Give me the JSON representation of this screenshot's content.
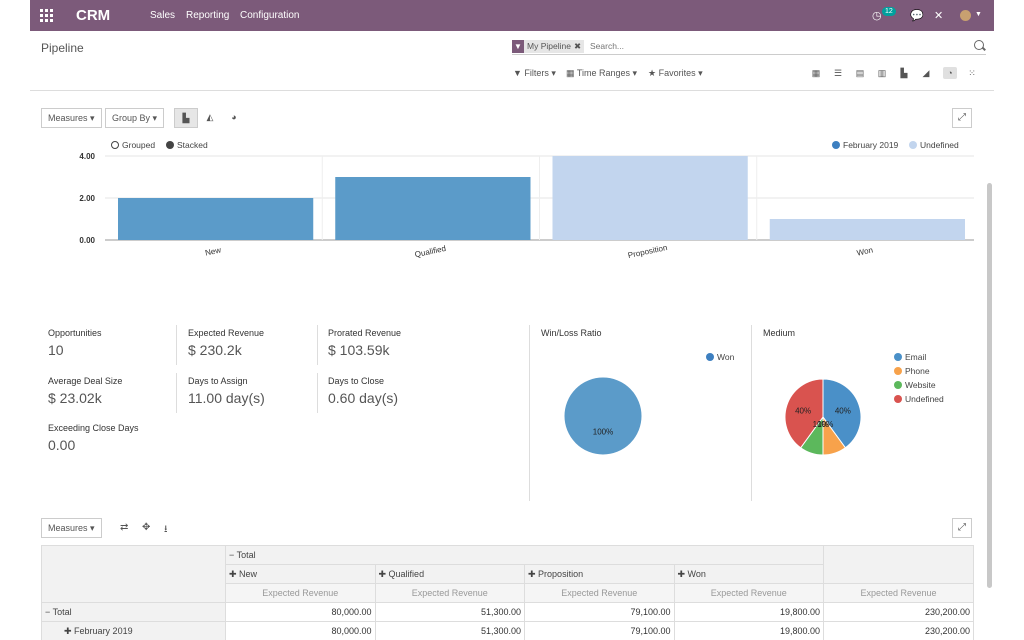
{
  "nav": {
    "brand": "CRM",
    "menus": [
      "Sales",
      "Reporting",
      "Configuration"
    ],
    "activity_count": "12"
  },
  "control_panel": {
    "breadcrumb": "Pipeline",
    "facet_value": "My Pipeline",
    "search_placeholder": "Search...",
    "filters_label": "Filters",
    "time_ranges_label": "Time Ranges",
    "favorites_label": "Favorites"
  },
  "graph": {
    "measures_label": "Measures",
    "groupby_label": "Group By",
    "grouped_label": "Grouped",
    "stacked_label": "Stacked"
  },
  "chart_data": [
    {
      "type": "bar",
      "categories": [
        "New",
        "Qualified",
        "Proposition",
        "Won"
      ],
      "series": [
        {
          "name": "February 2019",
          "values": [
            2,
            3,
            null,
            null
          ],
          "color": "#5b9bc9"
        },
        {
          "name": "Undefined",
          "values": [
            null,
            null,
            4,
            1
          ],
          "color": "#c2d5ee"
        }
      ],
      "ylim": [
        0,
        4
      ],
      "yticks": [
        "4.00",
        "2.00",
        "0.00"
      ],
      "legend": "top-right",
      "grid": true
    },
    {
      "type": "pie",
      "title": "Win/Loss Ratio",
      "labels": [
        "Won"
      ],
      "values": [
        100
      ],
      "data_labels": [
        "100%"
      ],
      "colors": [
        "#5b9bc9"
      ]
    },
    {
      "type": "pie",
      "title": "Medium",
      "labels": [
        "Email",
        "Phone",
        "Website",
        "Undefined"
      ],
      "values": [
        40,
        10,
        10,
        40
      ],
      "data_labels": [
        "40%",
        "10%",
        "10%",
        "40%"
      ],
      "colors": [
        "#4a90c8",
        "#f7a24b",
        "#5cb85c",
        "#d9534f"
      ]
    }
  ],
  "stats": [
    {
      "label": "Opportunities",
      "value": "10"
    },
    {
      "label": "Expected Revenue",
      "value": "$ 230.2k"
    },
    {
      "label": "Prorated Revenue",
      "value": "$ 103.59k"
    },
    {
      "label": "Average Deal Size",
      "value": "$ 23.02k"
    },
    {
      "label": "Days to Assign",
      "value": "11.00 day(s)"
    },
    {
      "label": "Days to Close",
      "value": "0.60 day(s)"
    },
    {
      "label": "Exceeding Close Days",
      "value": "0.00"
    }
  ],
  "pivot": {
    "measures_label": "Measures",
    "total_header": "Total",
    "stage_headers": [
      "New",
      "Qualified",
      "Proposition",
      "Won"
    ],
    "measure_name": "Expected Revenue",
    "rows": [
      {
        "label": "Total",
        "values": [
          "80,000.00",
          "51,300.00",
          "79,100.00",
          "19,800.00",
          "230,200.00"
        ]
      },
      {
        "label": "February 2019",
        "values": [
          "80,000.00",
          "51,300.00",
          "79,100.00",
          "19,800.00",
          "230,200.00"
        ]
      }
    ]
  }
}
